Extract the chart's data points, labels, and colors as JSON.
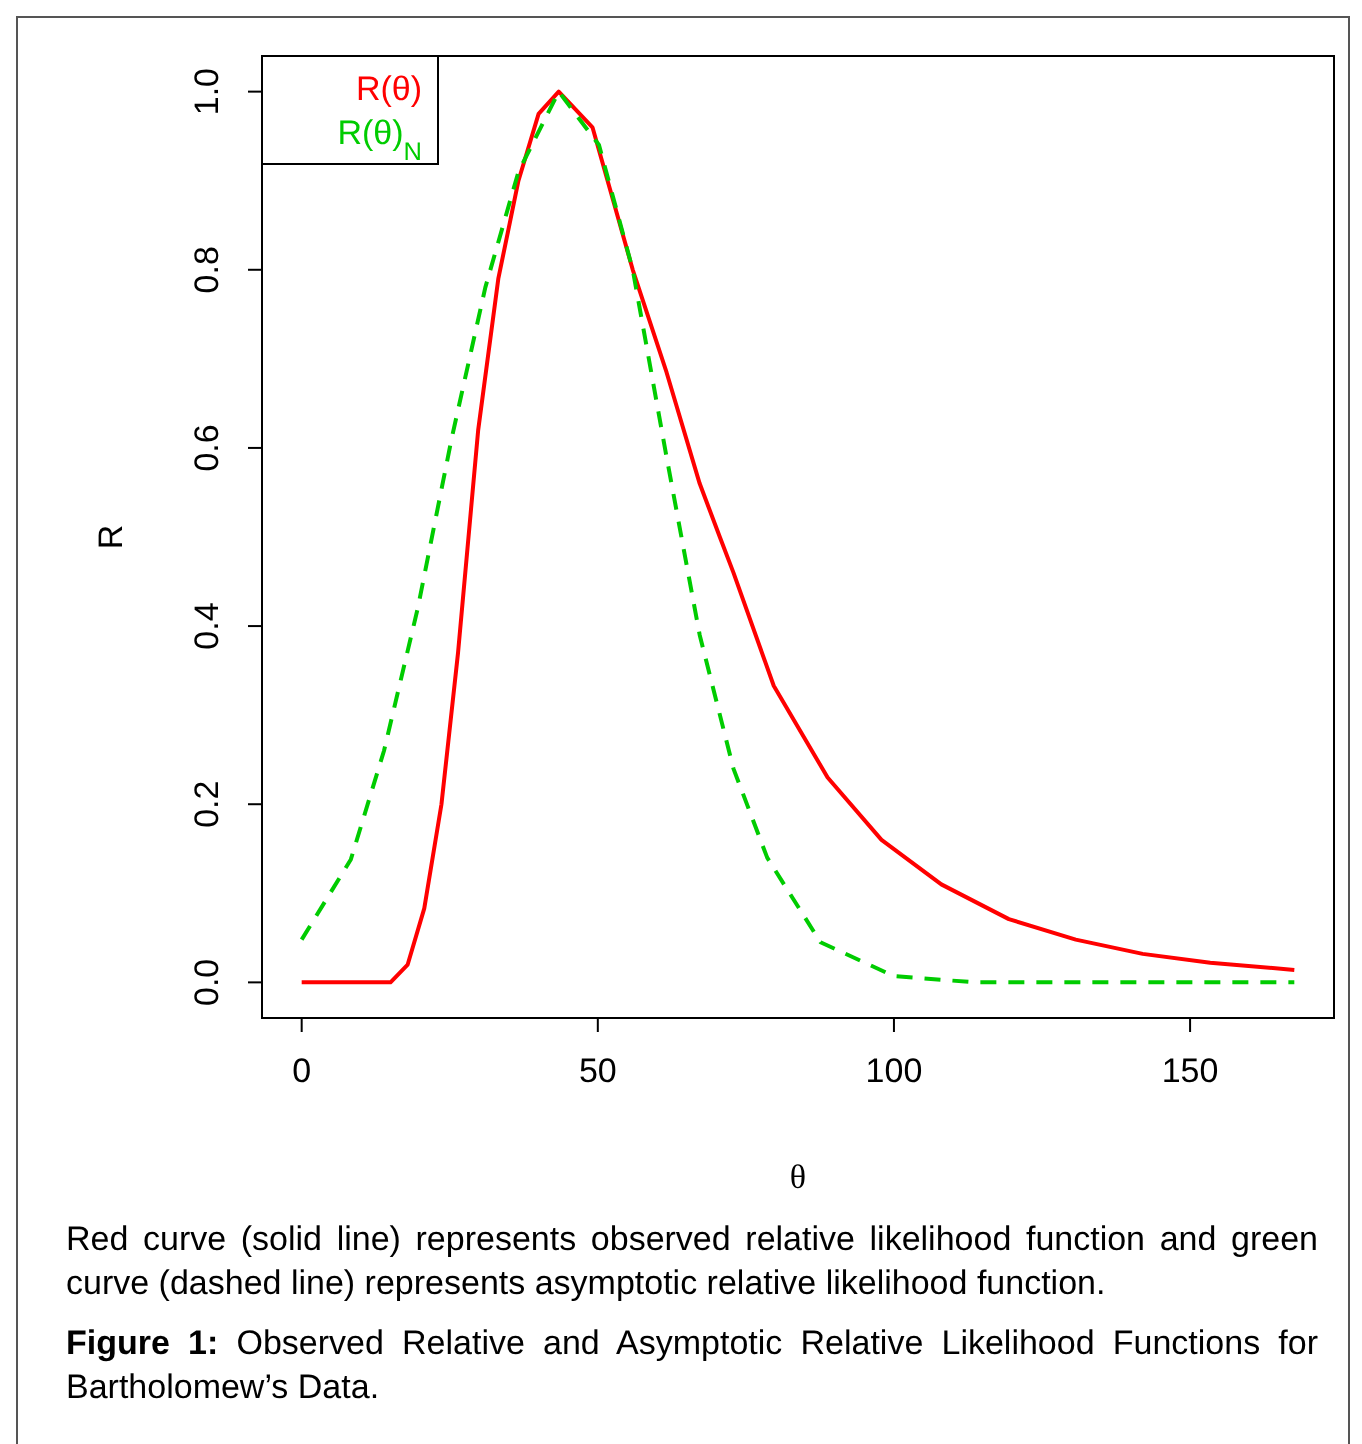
{
  "chart_data": {
    "type": "line",
    "xlabel": "θ",
    "ylabel": "R",
    "xlim": [
      -6.7,
      174.3
    ],
    "ylim": [
      -0.04,
      1.04
    ],
    "xticks": [
      0,
      50,
      100,
      150
    ],
    "yticks": [
      {
        "value": 0,
        "label": "0.0"
      },
      {
        "value": 0.2,
        "label": "0.2"
      },
      {
        "value": 0.4,
        "label": "0.4"
      },
      {
        "value": 0.6,
        "label": "0.6"
      },
      {
        "value": 0.8,
        "label": "0.8"
      },
      {
        "value": 1,
        "label": "1.0"
      }
    ],
    "legend": "top left",
    "grid": false,
    "series": [
      {
        "name": "R(θ)",
        "color": "#ff0000",
        "line_style": "solid",
        "x": [
          0,
          12.6,
          15,
          17.9,
          20.7,
          23.6,
          26.4,
          29.8,
          33.2,
          36.6,
          40,
          43.4,
          49.1,
          55.9,
          61.6,
          67.2,
          70.6,
          72.9,
          79.7,
          88.8,
          97.9,
          108,
          119.4,
          130.7,
          142,
          153.4,
          167.6
        ],
        "values": [
          0,
          0,
          0,
          0.02,
          0.083,
          0.2,
          0.37,
          0.62,
          0.79,
          0.9,
          0.975,
          1,
          0.96,
          0.8,
          0.685,
          0.56,
          0.5,
          0.46,
          0.333,
          0.23,
          0.16,
          0.11,
          0.071,
          0.048,
          0.032,
          0.022,
          0.014
        ]
      },
      {
        "name": "R(θ)$_{N}$",
        "color": "#00cc00",
        "line_style": "dashed",
        "x": [
          0,
          8.3,
          13.9,
          19.6,
          25.3,
          31,
          36.6,
          43.4,
          50.2,
          55.9,
          61.6,
          67.2,
          72.9,
          78.6,
          87.6,
          100,
          113.7,
          167.6
        ],
        "values": [
          0.048,
          0.138,
          0.26,
          0.42,
          0.61,
          0.78,
          0.91,
          1,
          0.94,
          0.8,
          0.59,
          0.39,
          0.24,
          0.14,
          0.045,
          0.007,
          0,
          0
        ]
      }
    ],
    "annotations": [
      "Red curve (solid line) represents observed relative likelihood function and green curve (dashed line) represents asymptotic relative likelihood function.",
      "Figure 1: Observed Relative and Asymptotic Relative Likelihood Functions for Bartholomew’s Data."
    ]
  }
}
